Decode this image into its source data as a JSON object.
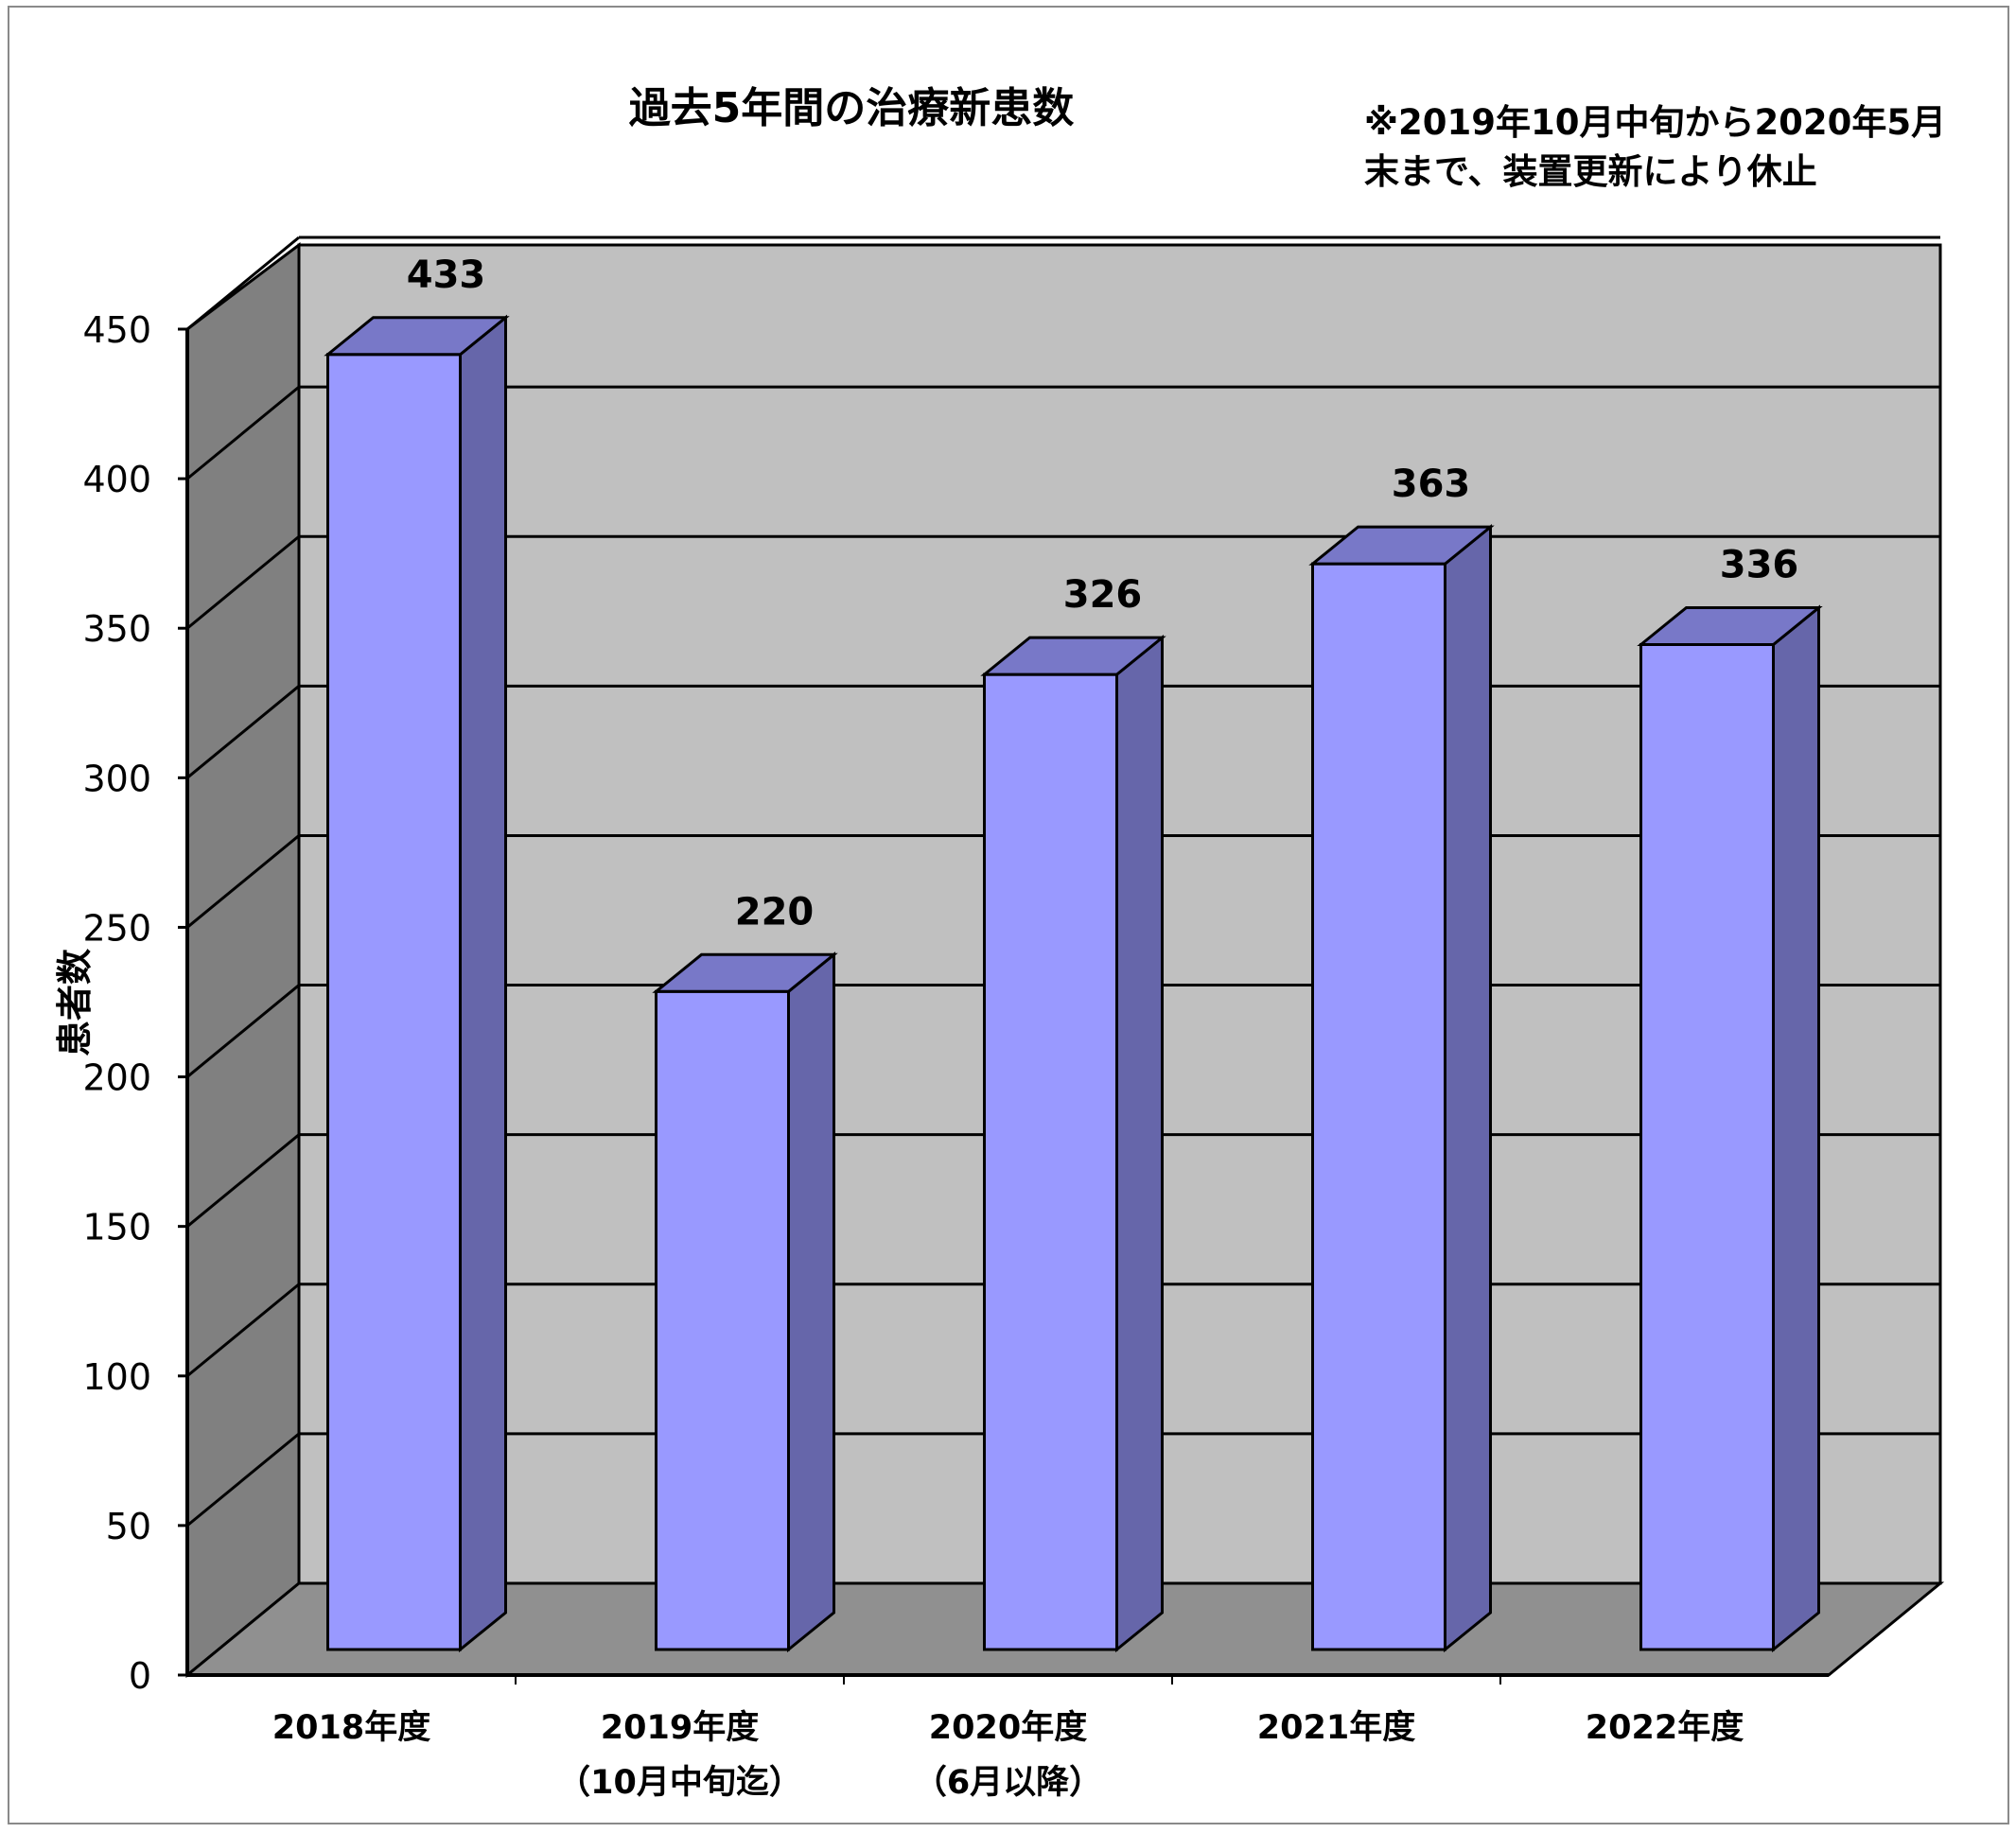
{
  "chart_data": {
    "type": "bar",
    "title": "過去5年間の治療新患数",
    "annotation": [
      "※2019年10月中旬から2020年5月",
      "末まで、装置更新により休止"
    ],
    "categories": [
      [
        "2018年度"
      ],
      [
        "2019年度",
        "（10月中旬迄）"
      ],
      [
        "2020年度",
        "（6月以降）"
      ],
      [
        "2021年度"
      ],
      [
        "2022年度"
      ]
    ],
    "values": [
      433,
      220,
      326,
      363,
      336
    ],
    "ylabel": "患者数",
    "xlabel": "",
    "ylim": [
      0,
      450
    ],
    "yticks": [
      0,
      50,
      100,
      150,
      200,
      250,
      300,
      350,
      400,
      450
    ],
    "grid": true,
    "style": "3d-column",
    "colors": {
      "bar_front": "#9999FF",
      "bar_side": "#6666AA",
      "bar_top": "#7878C8",
      "back_wall": "#C0C0C0",
      "side_wall": "#808080",
      "floor": "#909090"
    }
  }
}
